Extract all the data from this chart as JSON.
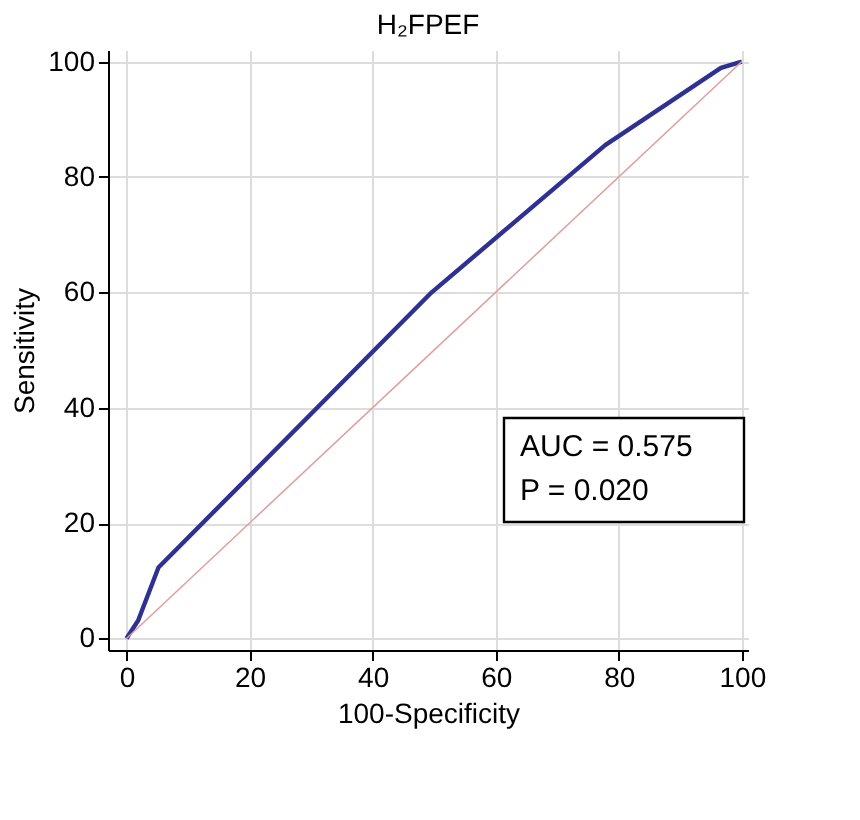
{
  "chart_data": {
    "type": "line",
    "title": "H₂FPEF",
    "xlabel": "100-Specificity",
    "ylabel": "Sensitivity",
    "series": [
      {
        "x": [
          0,
          1.9,
          5.2,
          49.6,
          77.8,
          96.6,
          100
        ],
        "values": [
          0,
          3.1,
          12.3,
          60,
          85.5,
          98.9,
          100
        ],
        "color": "#2e3192"
      },
      {
        "x": [
          0,
          100
        ],
        "values": [
          0,
          100
        ],
        "color": "#e0a0a0"
      }
    ],
    "xlim": [
      -3,
      101
    ],
    "ylim": [
      -2,
      102
    ],
    "xticks": [
      0,
      20,
      40,
      60,
      80,
      100
    ],
    "yticks": [
      0,
      20,
      40,
      60,
      80,
      100
    ],
    "grid": true,
    "marker": "none",
    "line_style": "solid",
    "annotations": [
      "AUC = 0.575",
      "P = 0.020"
    ]
  }
}
